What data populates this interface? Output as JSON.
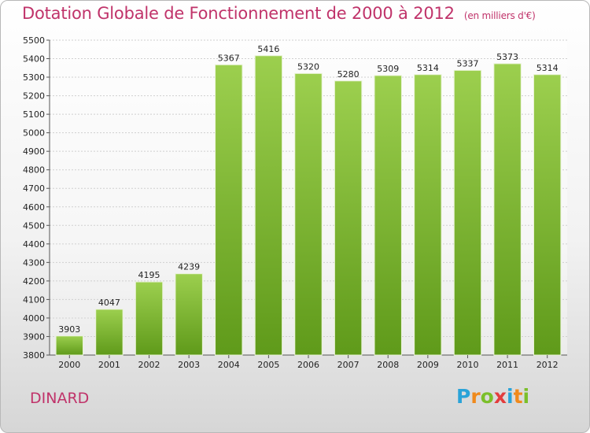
{
  "title": "Dotation Globale de Fonctionnement de 2000 à 2012",
  "subtitle": "(en milliers d'€)",
  "city": "DINARD",
  "logo": {
    "letters": [
      "P",
      "r",
      "o",
      "x",
      "i",
      "t",
      "i"
    ],
    "colors": [
      "#2aa3d8",
      "#f08a1c",
      "#7bbf2a",
      "#e33d3d",
      "#2aa3d8",
      "#f08a1c",
      "#7bbf2a"
    ]
  },
  "colors": {
    "bar_light": "#9ccf4e",
    "bar_dark": "#5f9a1a",
    "title": "#c0336a"
  },
  "chart_data": {
    "type": "bar",
    "categories": [
      "2000",
      "2001",
      "2002",
      "2003",
      "2004",
      "2005",
      "2006",
      "2007",
      "2008",
      "2009",
      "2010",
      "2011",
      "2012"
    ],
    "values": [
      3903,
      4047,
      4195,
      4239,
      5367,
      5416,
      5320,
      5280,
      5309,
      5314,
      5337,
      5373,
      5314
    ],
    "ylim": [
      3800,
      5500
    ],
    "yticks": [
      3800,
      3900,
      4000,
      4100,
      4200,
      4300,
      4400,
      4500,
      4600,
      4700,
      4800,
      4900,
      5000,
      5100,
      5200,
      5300,
      5400,
      5500
    ],
    "grid": true,
    "xlabel": "",
    "ylabel": ""
  }
}
